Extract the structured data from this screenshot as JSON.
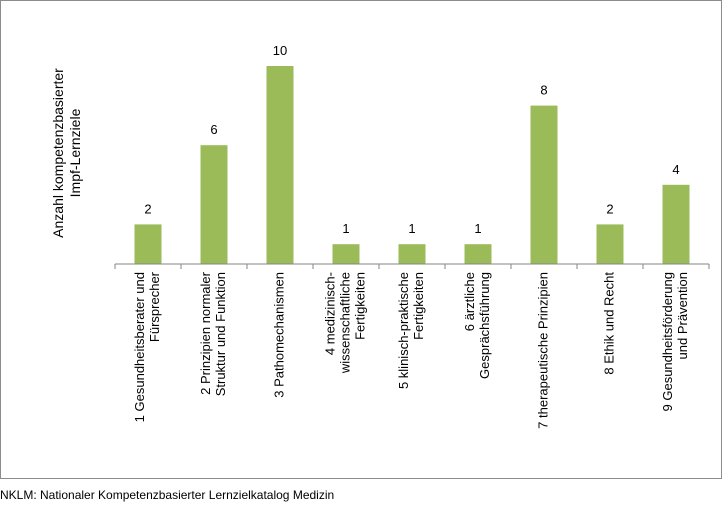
{
  "chart_data": {
    "type": "bar",
    "ylabel": [
      "Anzahl kompetenzbasierter",
      "Impf-Lernziele"
    ],
    "categories": [
      [
        "1 Gesundheitsberater und",
        "Fürsprecher"
      ],
      [
        "2 Prinzipien normaler",
        "Struktur und Funktion"
      ],
      [
        "3 Pathomechanismen"
      ],
      [
        "4 medizinisch-",
        "wissenschaftliche",
        "Fertigkeiten"
      ],
      [
        "5 klinisch-praktische",
        "Fertigkeiten"
      ],
      [
        "6 ärztliche",
        "Gesprächsführung"
      ],
      [
        "7 therapeutische Prinzipien"
      ],
      [
        "8 Ethik und Recht"
      ],
      [
        "9 Gesundheitsförderung",
        "und Prävention"
      ]
    ],
    "values": [
      2,
      6,
      10,
      1,
      1,
      1,
      8,
      2,
      4
    ],
    "ylim": [
      0,
      10
    ],
    "grid": false,
    "legend": "none",
    "colors": {
      "bar": "#9bbb59",
      "axis": "#868686"
    }
  },
  "footnote": "NKLM: Nationaler Kompetenzbasierter Lernzielkatalog Medizin"
}
